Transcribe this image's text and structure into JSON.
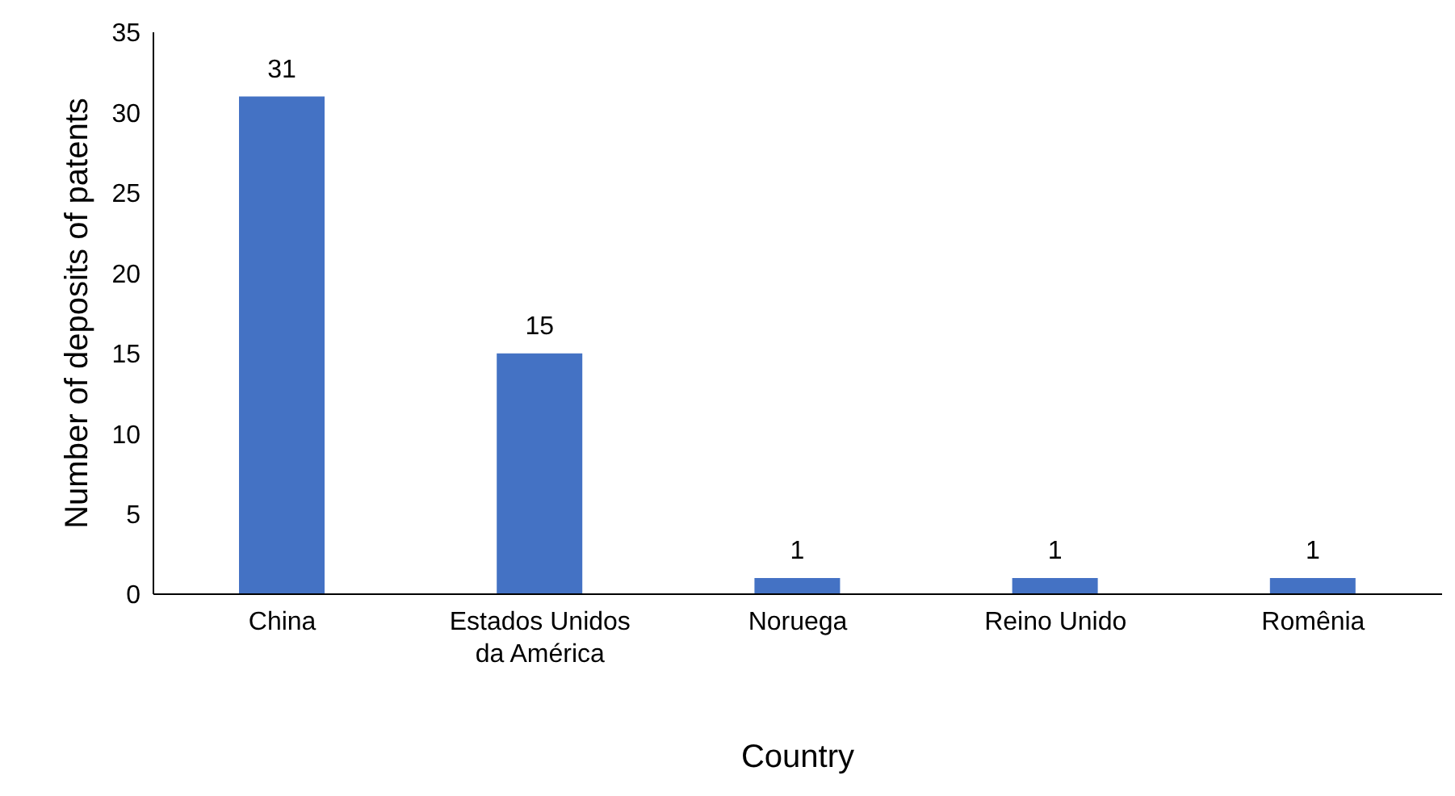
{
  "chart_data": {
    "type": "bar",
    "xlabel": "Country",
    "ylabel": "Number of deposits of patents",
    "categories": [
      "China",
      "Estados Unidos da América",
      "Noruega",
      "Reino Unido",
      "Romênia"
    ],
    "values": [
      31,
      15,
      1,
      1,
      1
    ],
    "color": "#4472c4",
    "ylim": [
      0,
      35
    ],
    "yticks": [
      0,
      5,
      10,
      15,
      20,
      25,
      30,
      35
    ],
    "grid": false,
    "data_labels": true
  }
}
